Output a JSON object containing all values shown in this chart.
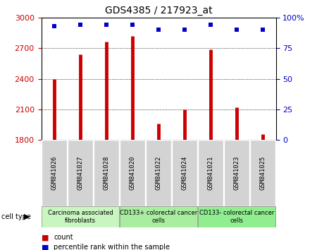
{
  "title": "GDS4385 / 217923_at",
  "samples": [
    "GSM841026",
    "GSM841027",
    "GSM841028",
    "GSM841020",
    "GSM841022",
    "GSM841024",
    "GSM841021",
    "GSM841023",
    "GSM841025"
  ],
  "counts": [
    2400,
    2640,
    2760,
    2820,
    1960,
    2100,
    2690,
    2120,
    1860
  ],
  "percentile_ranks": [
    93,
    94,
    94,
    94,
    90,
    90,
    94,
    90,
    90
  ],
  "ylim_left": [
    1800,
    3000
  ],
  "ylim_right": [
    0,
    100
  ],
  "yticks_left": [
    1800,
    2100,
    2400,
    2700,
    3000
  ],
  "yticks_right": [
    0,
    25,
    50,
    75,
    100
  ],
  "group_labels": [
    "Carcinoma associated\nfibroblasts",
    "CD133+ colorectal cancer\ncells",
    "CD133- colorectal cancer\ncells"
  ],
  "group_ranges": [
    [
      0,
      3
    ],
    [
      3,
      6
    ],
    [
      6,
      9
    ]
  ],
  "group_colors": [
    "#c8f5c8",
    "#b0ebb0",
    "#90ee90"
  ],
  "bar_color": "#cc0000",
  "scatter_color": "#0000cc",
  "tick_bg_color": "#d3d3d3",
  "cell_type_label": "cell type",
  "legend_count_label": "count",
  "legend_percentile_label": "percentile rank within the sample",
  "grid_color": "#000000",
  "left_tick_color": "#cc0000",
  "right_tick_color": "#0000cc"
}
